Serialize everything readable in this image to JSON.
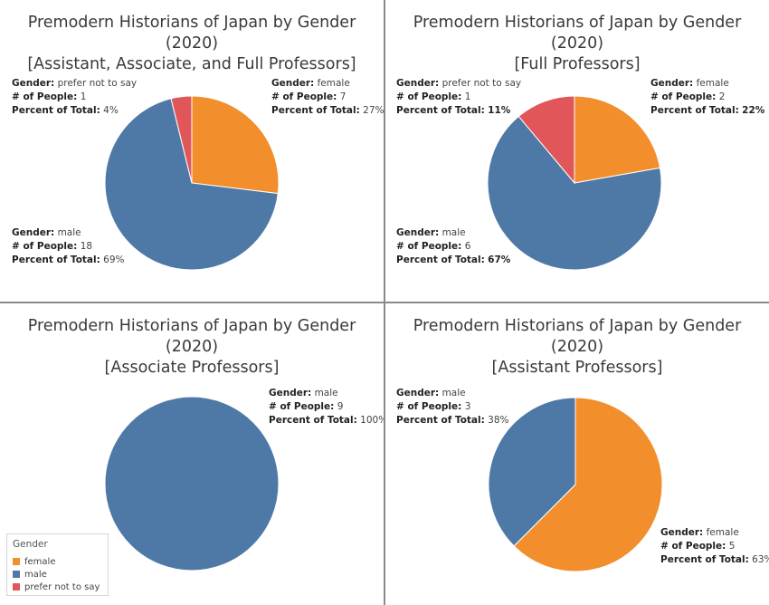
{
  "colors": {
    "female": "#f28e2b",
    "male": "#4e79a7",
    "prefer not to say": "#e15759"
  },
  "field_labels": {
    "gender": "Gender:",
    "people": "# of People:",
    "percent": "Percent of Total:"
  },
  "legend": {
    "title": "Gender",
    "items": [
      {
        "label": "female",
        "color": "#f28e2b"
      },
      {
        "label": "male",
        "color": "#4e79a7"
      },
      {
        "label": "prefer not to say",
        "color": "#e15759"
      }
    ]
  },
  "chart_data": [
    {
      "type": "pie",
      "title": "Premodern Historians of Japan by Gender (2020)",
      "subtitle": "[Assistant, Associate, and Full Professors]",
      "slices": [
        {
          "gender": "female",
          "people": 7,
          "percent": "27%"
        },
        {
          "gender": "male",
          "people": 18,
          "percent": "69%"
        },
        {
          "gender": "prefer not to say",
          "people": 1,
          "percent": "4%"
        }
      ]
    },
    {
      "type": "pie",
      "title": "Premodern Historians of Japan by Gender (2020)",
      "subtitle": "[Full Professors]",
      "slices": [
        {
          "gender": "female",
          "people": 2,
          "percent": "22%"
        },
        {
          "gender": "male",
          "people": 6,
          "percent": "67%"
        },
        {
          "gender": "prefer not to say",
          "people": 1,
          "percent": "11%"
        }
      ]
    },
    {
      "type": "pie",
      "title": "Premodern Historians of Japan by Gender (2020)",
      "subtitle": "[Associate Professors]",
      "slices": [
        {
          "gender": "male",
          "people": 9,
          "percent": "100%"
        }
      ]
    },
    {
      "type": "pie",
      "title": "Premodern Historians of Japan by Gender (2020)",
      "subtitle": "[Assistant Professors]",
      "slices": [
        {
          "gender": "female",
          "people": 5,
          "percent": "63%"
        },
        {
          "gender": "male",
          "people": 3,
          "percent": "38%"
        }
      ]
    }
  ]
}
